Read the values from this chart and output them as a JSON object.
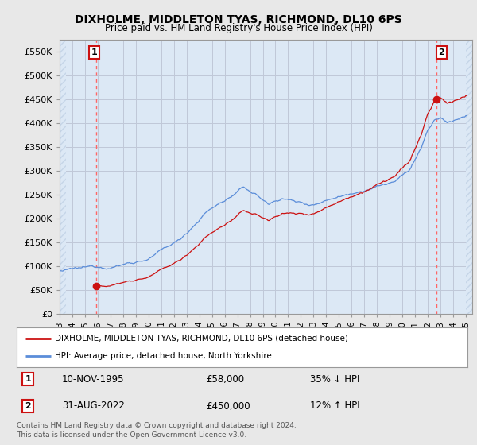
{
  "title": "DIXHOLME, MIDDLETON TYAS, RICHMOND, DL10 6PS",
  "subtitle": "Price paid vs. HM Land Registry's House Price Index (HPI)",
  "ylabel_ticks": [
    "£0",
    "£50K",
    "£100K",
    "£150K",
    "£200K",
    "£250K",
    "£300K",
    "£350K",
    "£400K",
    "£450K",
    "£500K",
    "£550K"
  ],
  "ytick_values": [
    0,
    50000,
    100000,
    150000,
    200000,
    250000,
    300000,
    350000,
    400000,
    450000,
    500000,
    550000
  ],
  "ylim": [
    0,
    575000
  ],
  "hpi_color": "#5b8dd9",
  "price_color": "#cc1111",
  "marker_color": "#cc1111",
  "grid_color": "#c0c8d8",
  "bg_color": "#e8e8e8",
  "plot_bg": "#dce8f5",
  "hatch_color": "#c5d5e8",
  "sale1_x": 1995.86,
  "sale1_y": 58000,
  "sale2_x": 2022.67,
  "sale2_y": 450000,
  "sale1_date": "10-NOV-1995",
  "sale1_price": "£58,000",
  "sale1_hpi": "35% ↓ HPI",
  "sale2_date": "31-AUG-2022",
  "sale2_price": "£450,000",
  "sale2_hpi": "12% ↑ HPI",
  "xmin": 1993,
  "xmax": 2025.5,
  "legend_line1": "DIXHOLME, MIDDLETON TYAS, RICHMOND, DL10 6PS (detached house)",
  "legend_line2": "HPI: Average price, detached house, North Yorkshire",
  "footer": "Contains HM Land Registry data © Crown copyright and database right 2024.\nThis data is licensed under the Open Government Licence v3.0.",
  "xtick_years": [
    1993,
    1994,
    1995,
    1996,
    1997,
    1998,
    1999,
    2000,
    2001,
    2002,
    2003,
    2004,
    2005,
    2006,
    2007,
    2008,
    2009,
    2010,
    2011,
    2012,
    2013,
    2014,
    2015,
    2016,
    2017,
    2018,
    2019,
    2020,
    2021,
    2022,
    2023,
    2024,
    2025
  ]
}
